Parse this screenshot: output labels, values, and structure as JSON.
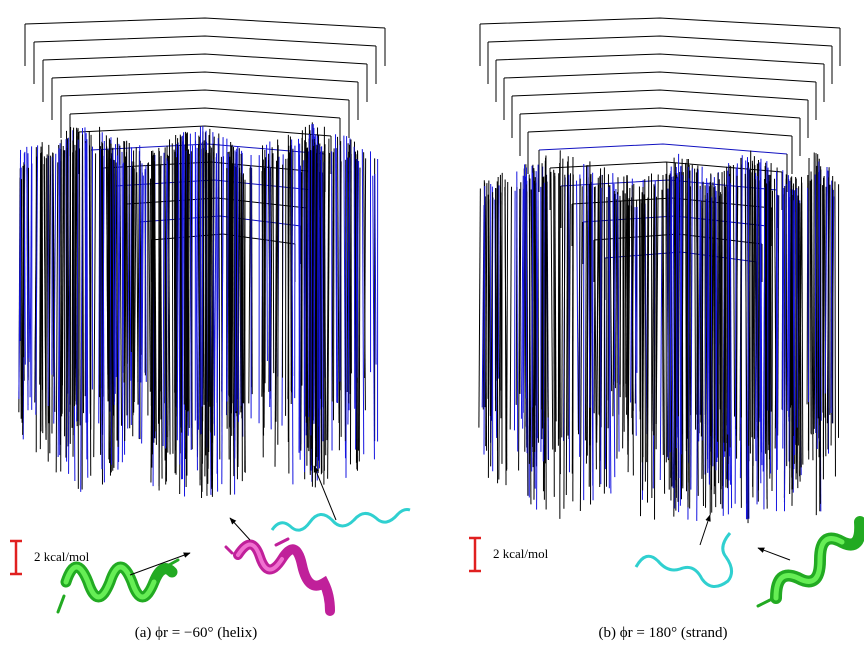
{
  "panels": [
    {
      "caption": "(a) ϕr = −60° (helix)",
      "scale_label": "2 kcal/mol"
    },
    {
      "caption": "(b) ϕr = 180° (strand)",
      "scale_label": "2 kcal/mol"
    }
  ]
}
